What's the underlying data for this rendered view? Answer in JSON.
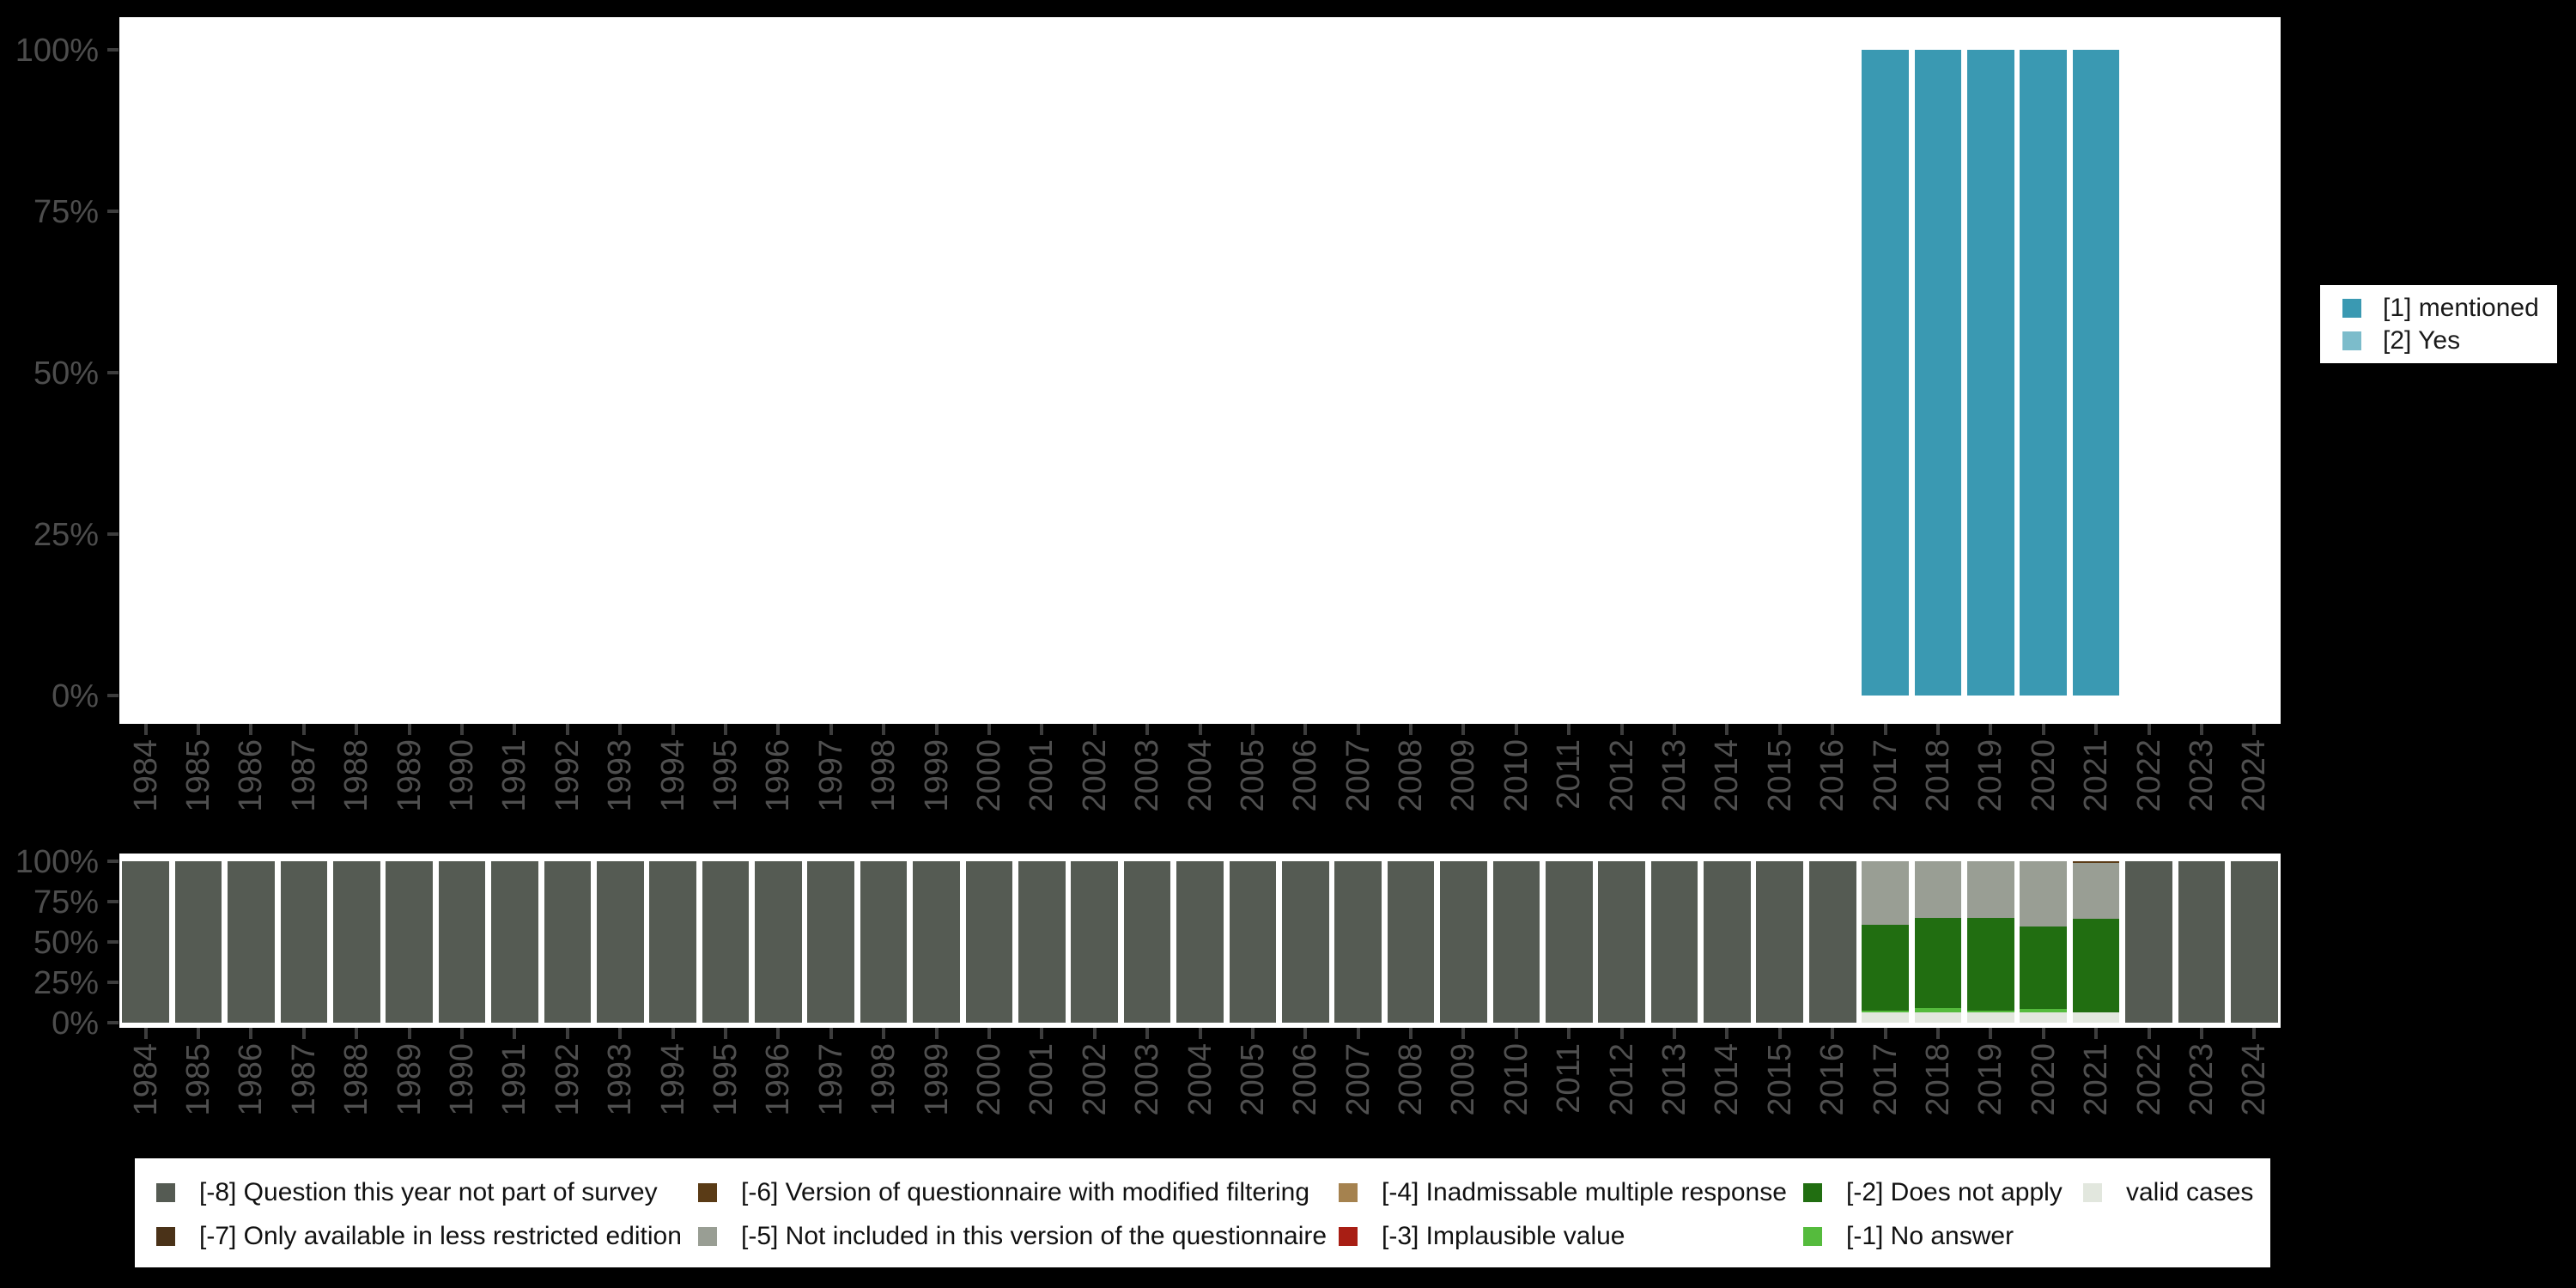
{
  "background_color": "#000000",
  "years": [
    "1984",
    "1985",
    "1986",
    "1987",
    "1988",
    "1989",
    "1990",
    "1991",
    "1992",
    "1993",
    "1994",
    "1995",
    "1996",
    "1997",
    "1998",
    "1999",
    "2000",
    "2001",
    "2002",
    "2003",
    "2004",
    "2005",
    "2006",
    "2007",
    "2008",
    "2009",
    "2010",
    "2011",
    "2012",
    "2013",
    "2014",
    "2015",
    "2016",
    "2017",
    "2018",
    "2019",
    "2020",
    "2021",
    "2022",
    "2023",
    "2024"
  ],
  "top_chart": {
    "y_tick_labels": [
      "100%",
      "75%",
      "50%",
      "25%",
      "0%"
    ],
    "legend": {
      "position": "right",
      "items": [
        {
          "label": "[1] mentioned",
          "color": "#3a99b2"
        },
        {
          "label": "[2] Yes",
          "color": "#7cbccb"
        }
      ]
    }
  },
  "bottom_chart": {
    "y_tick_labels": [
      "100%",
      "75%",
      "50%",
      "25%",
      "0%"
    ],
    "legend": {
      "position": "bottom",
      "items": [
        {
          "label": "[-8] Question this year not part of survey",
          "color": "#555b53"
        },
        {
          "label": "[-7] Only available in less restricted edition",
          "color": "#4a3218"
        },
        {
          "label": "[-6] Version of questionnaire with modified filtering",
          "color": "#5a3b16"
        },
        {
          "label": "[-5] Not included in this version of the questionnaire",
          "color": "#999e94"
        },
        {
          "label": "[-4] Inadmissable multiple response",
          "color": "#a5824f"
        },
        {
          "label": "[-3] Implausible value",
          "color": "#a81e14"
        },
        {
          "label": "[-2] Does not apply",
          "color": "#216e11"
        },
        {
          "label": "[-1] No answer",
          "color": "#55bb3d"
        },
        {
          "label": "valid cases",
          "color": "#e2e7de"
        }
      ]
    }
  },
  "chart_data": [
    {
      "type": "bar",
      "stacked": true,
      "title": "",
      "xlabel": "",
      "ylabel": "",
      "ylim": [
        0,
        100
      ],
      "y_unit": "percent",
      "grid": false,
      "legend_position": "right",
      "categories": [
        "1984",
        "1985",
        "1986",
        "1987",
        "1988",
        "1989",
        "1990",
        "1991",
        "1992",
        "1993",
        "1994",
        "1995",
        "1996",
        "1997",
        "1998",
        "1999",
        "2000",
        "2001",
        "2002",
        "2003",
        "2004",
        "2005",
        "2006",
        "2007",
        "2008",
        "2009",
        "2010",
        "2011",
        "2012",
        "2013",
        "2014",
        "2015",
        "2016",
        "2017",
        "2018",
        "2019",
        "2020",
        "2021",
        "2022",
        "2023",
        "2024"
      ],
      "series": [
        {
          "name": "[1] mentioned",
          "color": "#3a99b2",
          "values": [
            0,
            0,
            0,
            0,
            0,
            0,
            0,
            0,
            0,
            0,
            0,
            0,
            0,
            0,
            0,
            0,
            0,
            0,
            0,
            0,
            0,
            0,
            0,
            0,
            0,
            0,
            0,
            0,
            0,
            0,
            0,
            0,
            0,
            100,
            100,
            100,
            100,
            100,
            0,
            0,
            0
          ]
        },
        {
          "name": "[2] Yes",
          "color": "#7cbccb",
          "values": [
            0,
            0,
            0,
            0,
            0,
            0,
            0,
            0,
            0,
            0,
            0,
            0,
            0,
            0,
            0,
            0,
            0,
            0,
            0,
            0,
            0,
            0,
            0,
            0,
            0,
            0,
            0,
            0,
            0,
            0,
            0,
            0,
            0,
            0,
            0,
            0,
            0,
            0,
            0,
            0,
            0
          ]
        }
      ]
    },
    {
      "type": "bar",
      "stacked": true,
      "title": "",
      "xlabel": "",
      "ylabel": "",
      "ylim": [
        0,
        100
      ],
      "y_unit": "percent",
      "grid": false,
      "legend_position": "bottom",
      "categories": [
        "1984",
        "1985",
        "1986",
        "1987",
        "1988",
        "1989",
        "1990",
        "1991",
        "1992",
        "1993",
        "1994",
        "1995",
        "1996",
        "1997",
        "1998",
        "1999",
        "2000",
        "2001",
        "2002",
        "2003",
        "2004",
        "2005",
        "2006",
        "2007",
        "2008",
        "2009",
        "2010",
        "2011",
        "2012",
        "2013",
        "2014",
        "2015",
        "2016",
        "2017",
        "2018",
        "2019",
        "2020",
        "2021",
        "2022",
        "2023",
        "2024"
      ],
      "series": [
        {
          "name": "[-8] Question this year not part of survey",
          "color": "#555b53",
          "values": [
            100,
            100,
            100,
            100,
            100,
            100,
            100,
            100,
            100,
            100,
            100,
            100,
            100,
            100,
            100,
            100,
            100,
            100,
            100,
            100,
            100,
            100,
            100,
            100,
            100,
            100,
            100,
            100,
            100,
            100,
            100,
            100,
            100,
            0,
            0,
            0,
            0,
            0,
            100,
            100,
            100
          ]
        },
        {
          "name": "[-7] Only available in less restricted edition",
          "color": "#4a3218",
          "values": [
            0,
            0,
            0,
            0,
            0,
            0,
            0,
            0,
            0,
            0,
            0,
            0,
            0,
            0,
            0,
            0,
            0,
            0,
            0,
            0,
            0,
            0,
            0,
            0,
            0,
            0,
            0,
            0,
            0,
            0,
            0,
            0,
            0,
            0,
            0,
            0,
            0,
            0,
            0,
            0,
            0
          ]
        },
        {
          "name": "[-6] Version of questionnaire with modified filtering",
          "color": "#5a3b16",
          "values": [
            0,
            0,
            0,
            0,
            0,
            0,
            0,
            0,
            0,
            0,
            0,
            0,
            0,
            0,
            0,
            0,
            0,
            0,
            0,
            0,
            0,
            0,
            0,
            0,
            0,
            0,
            0,
            0,
            0,
            0,
            0,
            0,
            0,
            0,
            0,
            0,
            0,
            1,
            0,
            0,
            0
          ]
        },
        {
          "name": "[-5] Not included in this version of the questionnaire",
          "color": "#999e94",
          "values": [
            0,
            0,
            0,
            0,
            0,
            0,
            0,
            0,
            0,
            0,
            0,
            0,
            0,
            0,
            0,
            0,
            0,
            0,
            0,
            0,
            0,
            0,
            0,
            0,
            0,
            0,
            0,
            0,
            0,
            0,
            0,
            0,
            0,
            39.5,
            35,
            35,
            40.5,
            34.5,
            0,
            0,
            0
          ]
        },
        {
          "name": "[-4] Inadmissable multiple response",
          "color": "#a5824f",
          "values": [
            0,
            0,
            0,
            0,
            0,
            0,
            0,
            0,
            0,
            0,
            0,
            0,
            0,
            0,
            0,
            0,
            0,
            0,
            0,
            0,
            0,
            0,
            0,
            0,
            0,
            0,
            0,
            0,
            0,
            0,
            0,
            0,
            0,
            0,
            0,
            0,
            0,
            0,
            0,
            0,
            0
          ]
        },
        {
          "name": "[-3] Implausible value",
          "color": "#a81e14",
          "values": [
            0,
            0,
            0,
            0,
            0,
            0,
            0,
            0,
            0,
            0,
            0,
            0,
            0,
            0,
            0,
            0,
            0,
            0,
            0,
            0,
            0,
            0,
            0,
            0,
            0,
            0,
            0,
            0,
            0,
            0,
            0,
            0,
            0,
            0,
            0,
            0,
            0,
            0,
            0,
            0,
            0
          ]
        },
        {
          "name": "[-2] Does not apply",
          "color": "#216e11",
          "values": [
            0,
            0,
            0,
            0,
            0,
            0,
            0,
            0,
            0,
            0,
            0,
            0,
            0,
            0,
            0,
            0,
            0,
            0,
            0,
            0,
            0,
            0,
            0,
            0,
            0,
            0,
            0,
            0,
            0,
            0,
            0,
            0,
            0,
            53,
            56,
            57.5,
            51,
            58,
            0,
            0,
            0
          ]
        },
        {
          "name": "[-1] No answer",
          "color": "#55bb3d",
          "values": [
            0,
            0,
            0,
            0,
            0,
            0,
            0,
            0,
            0,
            0,
            0,
            0,
            0,
            0,
            0,
            0,
            0,
            0,
            0,
            0,
            0,
            0,
            0,
            0,
            0,
            0,
            0,
            0,
            0,
            0,
            0,
            0,
            0,
            1,
            2.5,
            1,
            2,
            0,
            0,
            0,
            0
          ]
        },
        {
          "name": "valid cases",
          "color": "#e2e7de",
          "values": [
            0,
            0,
            0,
            0,
            0,
            0,
            0,
            0,
            0,
            0,
            0,
            0,
            0,
            0,
            0,
            0,
            0,
            0,
            0,
            0,
            0,
            0,
            0,
            0,
            0,
            0,
            0,
            0,
            0,
            0,
            0,
            0,
            0,
            6.5,
            6.5,
            6.5,
            6.5,
            6.5,
            0,
            0,
            0
          ]
        }
      ]
    }
  ]
}
